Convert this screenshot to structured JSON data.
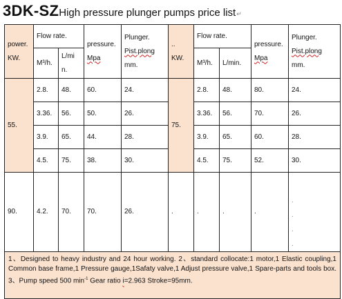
{
  "title": {
    "model": "3DK-SZ",
    "subtitle": "High pressure plunger pumps price list",
    "mark": "↵"
  },
  "headers": {
    "power": "power.",
    "power_unit": "KW.",
    "flow": "Flow rate.",
    "flow_m3_left": "M³/h.",
    "flow_lmin_left_1": "L/mi",
    "flow_lmin_left_2": "n.",
    "pressure": "pressure.",
    "pressure_unit": "Mpa",
    "plunger": "Plunger.",
    "plunger_unit": "Pist.plong",
    "plunger_mm": "mm.",
    "mid_power": "..",
    "mid_power_unit": "KW.",
    "flow_right": "Flow rate.",
    "flow_m3_right": "M³/h.",
    "flow_lmin_right": "L/min.",
    "pressure_right": "pressure.",
    "pressure_unit_right": "Mpa",
    "plunger_right": "Plunger.",
    "plunger_unit_right": "Pist.plong",
    "plunger_mm_right": "mm."
  },
  "group1": {
    "power": "55.",
    "power_right": "75.",
    "rows": [
      {
        "m3h": "2.8.",
        "lmin": "48.",
        "mpa": "60.",
        "mm": "24.",
        "m3h_r": "2.8.",
        "lmin_r": "48.",
        "mpa_r": "80.",
        "mm_r": "24."
      },
      {
        "m3h": "3.36.",
        "lmin": "56.",
        "mpa": "50.",
        "mm": "26.",
        "m3h_r": "3.36.",
        "lmin_r": "56.",
        "mpa_r": "70.",
        "mm_r": "26."
      },
      {
        "m3h": "3.9.",
        "lmin": "65.",
        "mpa": "44.",
        "mm": "28.",
        "m3h_r": "3.9.",
        "lmin_r": "65.",
        "mpa_r": "60.",
        "mm_r": "28."
      },
      {
        "m3h": "4.5.",
        "lmin": "75.",
        "mpa": "38.",
        "mm": "30.",
        "m3h_r": "4.5.",
        "lmin_r": "75.",
        "mpa_r": "52.",
        "mm_r": "30."
      }
    ]
  },
  "group2": {
    "power": "90.",
    "m3h": "4.2.",
    "lmin": "70.",
    "mpa": "70.",
    "mm": "26.",
    "blank_power_r": ".",
    "blank_m3h_r": ".",
    "blank_lmin_r": ".",
    "blank_mpa_r": ".",
    "dots": [
      ".",
      ".",
      ".",
      "."
    ]
  },
  "notes": {
    "part1": "1、Designed to heavy industry and 24 hour working.  2、standard collocate:1 motor,1 Elastic coupling,1 Common  base frame,1 Pressure gauge,1Safaty valve,1 Adjust pressure valve,1 Spare-parts and tools box. 3、Pump speed 500 min",
    "sup": "-1",
    "part2": "  Gear ratio ",
    "ratio_i": "i",
    "part3": "=2.963  Stroke=95mm."
  }
}
